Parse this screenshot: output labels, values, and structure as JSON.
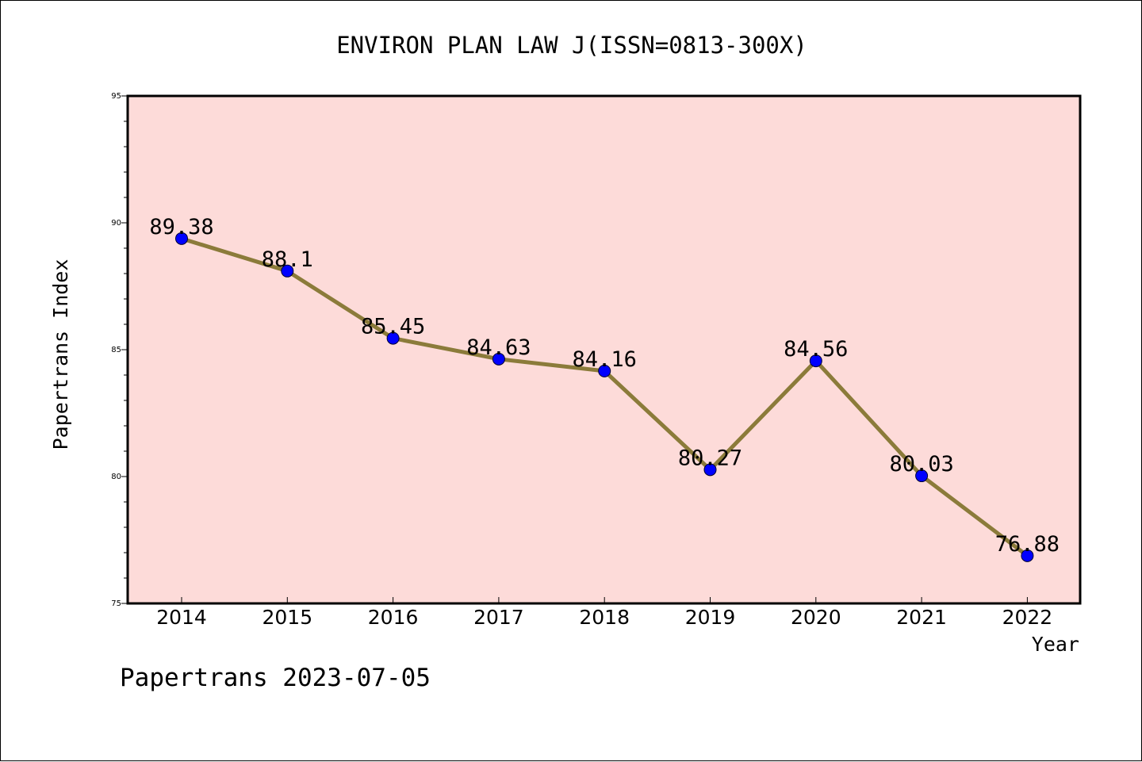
{
  "chart_data": {
    "type": "line",
    "title": "ENVIRON PLAN LAW J(ISSN=0813-300X)",
    "xlabel": "Year",
    "ylabel": "Papertrans Index",
    "ylim": [
      75,
      95
    ],
    "y_ticks": [
      75,
      80,
      85,
      90,
      95
    ],
    "y_tick_labels": [
      "75",
      "80",
      "85",
      "90",
      "95"
    ],
    "categories": [
      "2014",
      "2015",
      "2016",
      "2017",
      "2018",
      "2019",
      "2020",
      "2021",
      "2022"
    ],
    "values": [
      89.38,
      88.1,
      85.45,
      84.63,
      84.16,
      80.27,
      84.56,
      80.03,
      76.88
    ],
    "data_labels": [
      "89.38",
      "88.1",
      "85.45",
      "84.63",
      "84.16",
      "80.27",
      "84.56",
      "80.03",
      "76.88"
    ],
    "grid": false,
    "colors": {
      "plot_background": "#fddbd9",
      "line": "#8b7b3a",
      "marker": "#0000ff"
    }
  },
  "footer": {
    "credit": "Papertrans 2023-07-05"
  }
}
